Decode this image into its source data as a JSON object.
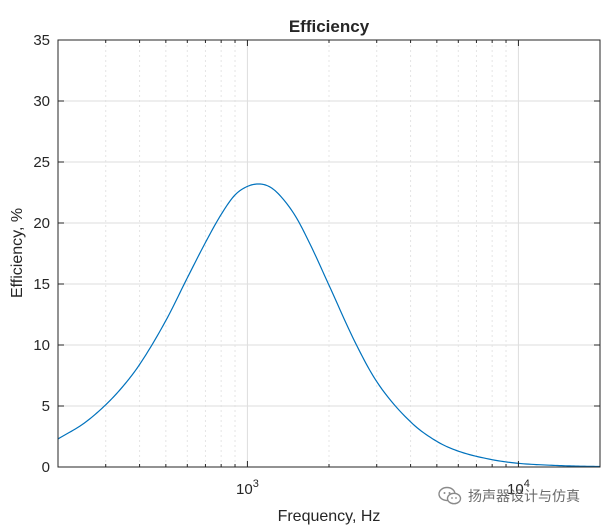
{
  "chart_data": {
    "type": "line",
    "title": "Efficiency",
    "xlabel": "Frequency, Hz",
    "ylabel": "Efficiency, %",
    "xscale": "log",
    "xlim": [
      200,
      20000
    ],
    "ylim": [
      0,
      35
    ],
    "yticks": [
      0,
      5,
      10,
      15,
      20,
      25,
      30,
      35
    ],
    "xticks": [
      {
        "value": 1000,
        "base": "10",
        "exponent": "3"
      },
      {
        "value": 10000,
        "base": "10",
        "exponent": "4"
      }
    ],
    "grid": true,
    "line_color": "#0072BD",
    "series": [
      {
        "x": [
          200,
          250,
          300,
          350,
          400,
          500,
          600,
          700,
          800,
          900,
          1000,
          1100,
          1200,
          1300,
          1500,
          1700,
          2000,
          2500,
          3000,
          4000,
          5000,
          6000,
          8000,
          10000,
          13000,
          16000,
          20000
        ],
        "values": [
          2.3,
          3.6,
          5.1,
          6.7,
          8.4,
          12.0,
          15.5,
          18.4,
          20.7,
          22.3,
          23.0,
          23.2,
          23.0,
          22.4,
          20.6,
          18.3,
          14.9,
          10.2,
          7.0,
          3.7,
          2.1,
          1.3,
          0.6,
          0.3,
          0.15,
          0.08,
          0.04
        ]
      }
    ]
  },
  "watermark": {
    "text": "扬声器设计与仿真",
    "icon": "wechat-icon"
  }
}
